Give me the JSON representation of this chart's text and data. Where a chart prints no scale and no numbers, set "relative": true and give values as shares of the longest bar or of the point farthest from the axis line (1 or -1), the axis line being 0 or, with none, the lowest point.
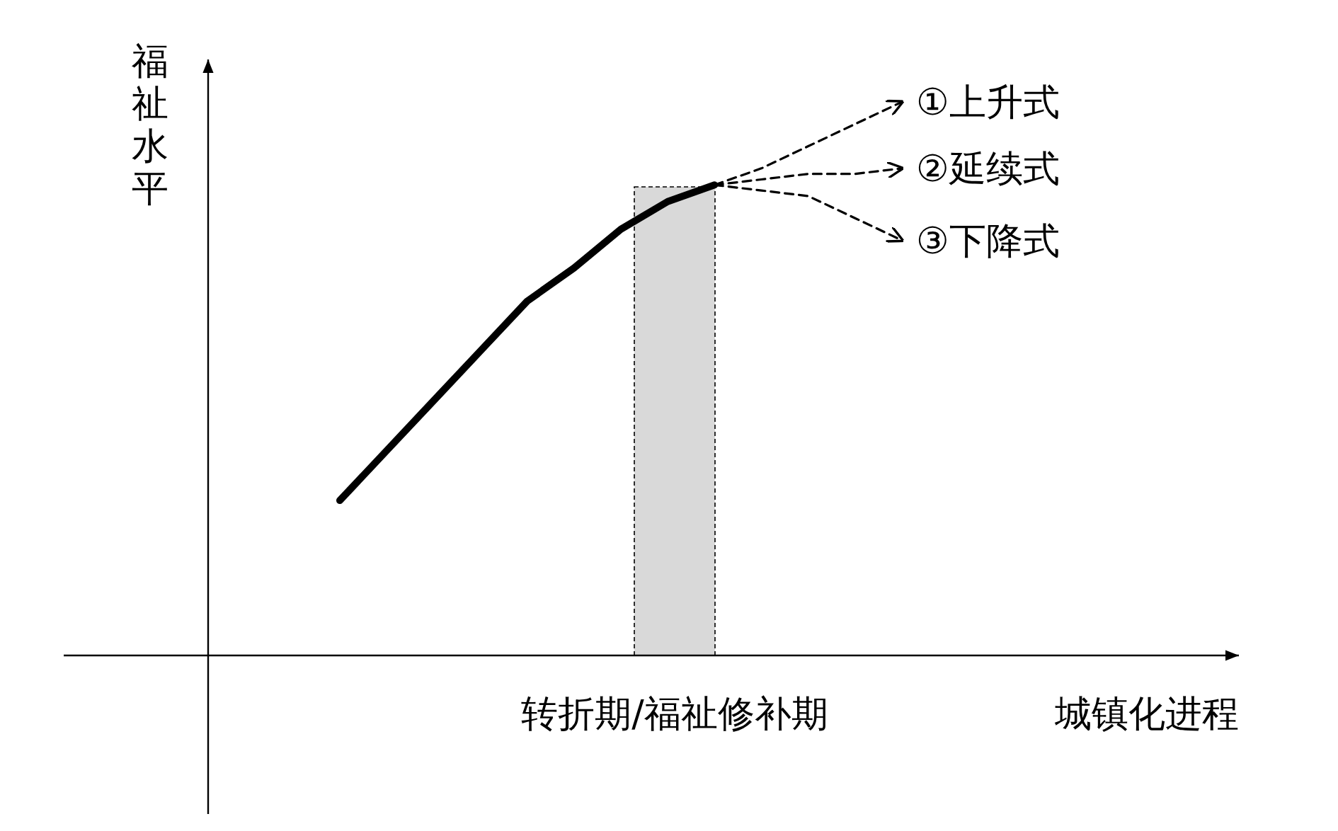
{
  "chart_data": {
    "type": "line",
    "relative": true,
    "xlabel": "城镇化进程",
    "ylabel": "福祉水平",
    "legend": "right",
    "categories": [
      null,
      null,
      null,
      null,
      null,
      null,
      null,
      null,
      null,
      null,
      null,
      null,
      null
    ],
    "series": [
      {
        "color": "#000000",
        "line_style": "solid",
        "values": [
          0.28,
          0.37,
          0.46,
          0.55,
          0.64,
          0.7,
          0.77,
          0.82,
          0.85,
          null,
          null,
          null,
          null
        ]
      },
      {
        "name": "①上升式",
        "color": "#000000",
        "line_style": "dashed",
        "values": [
          null,
          null,
          null,
          null,
          null,
          null,
          null,
          null,
          0.85,
          0.88,
          0.92,
          0.96,
          1
        ]
      },
      {
        "name": "②延续式",
        "color": "#000000",
        "line_style": "dashed",
        "values": [
          null,
          null,
          null,
          null,
          null,
          null,
          null,
          null,
          0.85,
          0.86,
          0.87,
          0.87,
          0.88
        ]
      },
      {
        "name": "③下降式",
        "color": "#000000",
        "line_style": "dashed",
        "values": [
          null,
          null,
          null,
          null,
          null,
          null,
          null,
          null,
          0.85,
          0.84,
          0.83,
          0.79,
          0.75
        ]
      }
    ],
    "annotations": [
      "转折期/福祉修补期"
    ]
  }
}
